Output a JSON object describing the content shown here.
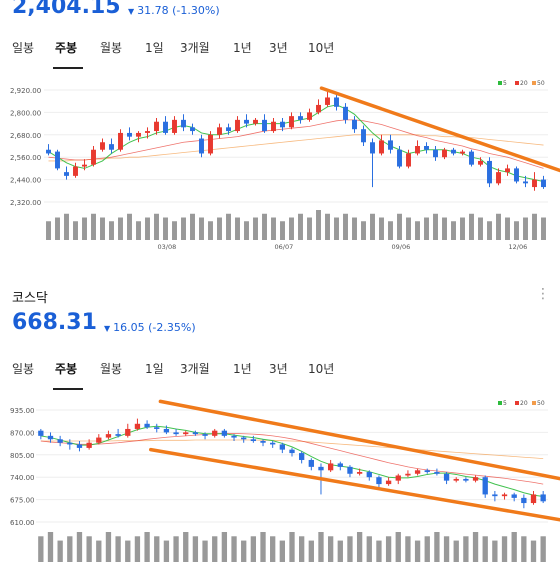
{
  "panel1": {
    "price": "2,404.15",
    "change": "31.78 (-1.30%)",
    "direction_icon": "triangle-down-icon",
    "tabs": [
      "일봉",
      "주봉",
      "월봉",
      "1일",
      "3개월",
      "1년",
      "3년",
      "10년"
    ],
    "active_tab": "주봉"
  },
  "panel2": {
    "name": "코스닥",
    "price": "668.31",
    "change": "16.05 (-2.35%)",
    "direction_icon": "triangle-down-icon",
    "tabs": [
      "일봉",
      "주봉",
      "월봉",
      "1일",
      "3개월",
      "1년",
      "3년",
      "10년"
    ],
    "active_tab": "주봉",
    "menu_icon": "more-vertical-icon"
  },
  "colors": {
    "up": "#e8392f",
    "down": "#2a6fe0",
    "ma5": "#2dbb3c",
    "ma20": "#e8392f",
    "ma50": "#f39c4a",
    "trendline": "#f07a1a",
    "volume": "#999999",
    "accent": "#1a5fd6"
  },
  "chart_data": [
    {
      "type": "candlestick",
      "legend": [
        "5",
        "20",
        "50"
      ],
      "legend_position": "top-right",
      "yticks": [
        "2,920.00",
        "2,800.00",
        "2,680.00",
        "2,560.00",
        "2,440.00",
        "2,320.00"
      ],
      "ylim": [
        2320,
        2920
      ],
      "xticks": [
        {
          "i": 13,
          "label": "03/08"
        },
        {
          "i": 26,
          "label": "06/07"
        },
        {
          "i": 39,
          "label": "09/06"
        },
        {
          "i": 52,
          "label": "12/06"
        }
      ],
      "candles": [
        [
          2600,
          2580,
          2630,
          2570
        ],
        [
          2590,
          2500,
          2600,
          2490
        ],
        [
          2480,
          2460,
          2510,
          2440
        ],
        [
          2460,
          2510,
          2530,
          2450
        ],
        [
          2510,
          2520,
          2550,
          2490
        ],
        [
          2520,
          2600,
          2620,
          2510
        ],
        [
          2600,
          2640,
          2660,
          2590
        ],
        [
          2630,
          2600,
          2660,
          2580
        ],
        [
          2600,
          2690,
          2710,
          2590
        ],
        [
          2690,
          2670,
          2720,
          2650
        ],
        [
          2670,
          2690,
          2700,
          2640
        ],
        [
          2690,
          2700,
          2720,
          2660
        ],
        [
          2700,
          2750,
          2770,
          2680
        ],
        [
          2750,
          2690,
          2780,
          2680
        ],
        [
          2690,
          2760,
          2780,
          2680
        ],
        [
          2760,
          2720,
          2790,
          2700
        ],
        [
          2720,
          2700,
          2740,
          2680
        ],
        [
          2660,
          2580,
          2680,
          2560
        ],
        [
          2580,
          2680,
          2700,
          2570
        ],
        [
          2680,
          2720,
          2740,
          2660
        ],
        [
          2720,
          2700,
          2740,
          2680
        ],
        [
          2700,
          2760,
          2780,
          2690
        ],
        [
          2760,
          2740,
          2790,
          2720
        ],
        [
          2740,
          2760,
          2770,
          2730
        ],
        [
          2760,
          2700,
          2790,
          2690
        ],
        [
          2700,
          2750,
          2770,
          2690
        ],
        [
          2750,
          2720,
          2770,
          2700
        ],
        [
          2720,
          2780,
          2800,
          2710
        ],
        [
          2780,
          2760,
          2800,
          2740
        ],
        [
          2760,
          2800,
          2820,
          2750
        ],
        [
          2800,
          2840,
          2870,
          2790
        ],
        [
          2840,
          2880,
          2910,
          2830
        ],
        [
          2880,
          2830,
          2900,
          2810
        ],
        [
          2830,
          2760,
          2850,
          2740
        ],
        [
          2760,
          2710,
          2780,
          2690
        ],
        [
          2710,
          2640,
          2730,
          2620
        ],
        [
          2640,
          2580,
          2660,
          2400
        ],
        [
          2580,
          2650,
          2680,
          2570
        ],
        [
          2650,
          2600,
          2680,
          2580
        ],
        [
          2600,
          2510,
          2620,
          2500
        ],
        [
          2510,
          2580,
          2600,
          2500
        ],
        [
          2580,
          2620,
          2650,
          2570
        ],
        [
          2620,
          2600,
          2640,
          2580
        ],
        [
          2600,
          2560,
          2620,
          2540
        ],
        [
          2560,
          2600,
          2610,
          2550
        ],
        [
          2600,
          2580,
          2610,
          2570
        ],
        [
          2580,
          2590,
          2600,
          2570
        ],
        [
          2590,
          2520,
          2600,
          2510
        ],
        [
          2520,
          2540,
          2560,
          2510
        ],
        [
          2540,
          2420,
          2560,
          2400
        ],
        [
          2420,
          2480,
          2500,
          2410
        ],
        [
          2480,
          2500,
          2520,
          2460
        ],
        [
          2500,
          2430,
          2510,
          2420
        ],
        [
          2430,
          2420,
          2460,
          2400
        ],
        [
          2400,
          2440,
          2480,
          2380
        ],
        [
          2440,
          2400,
          2460,
          2390
        ]
      ],
      "ma5": [
        2590,
        2560,
        2530,
        2510,
        2500,
        2520,
        2540,
        2580,
        2610,
        2640,
        2660,
        2670,
        2690,
        2700,
        2720,
        2730,
        2720,
        2690,
        2680,
        2680,
        2690,
        2710,
        2730,
        2740,
        2740,
        2740,
        2740,
        2750,
        2760,
        2770,
        2800,
        2830,
        2840,
        2820,
        2790,
        2740,
        2690,
        2650,
        2620,
        2600,
        2580,
        2590,
        2600,
        2600,
        2600,
        2590,
        2580,
        2560,
        2550,
        2510,
        2490,
        2480,
        2460,
        2450,
        2440,
        2430
      ],
      "ma20": [
        2560,
        2555,
        2550,
        2545,
        2545,
        2550,
        2555,
        2560,
        2570,
        2580,
        2590,
        2600,
        2610,
        2620,
        2630,
        2640,
        2645,
        2650,
        2655,
        2660,
        2665,
        2670,
        2680,
        2690,
        2700,
        2705,
        2710,
        2715,
        2720,
        2725,
        2735,
        2745,
        2755,
        2760,
        2760,
        2755,
        2745,
        2735,
        2720,
        2705,
        2690,
        2675,
        2665,
        2650,
        2640,
        2630,
        2620,
        2605,
        2595,
        2580,
        2570,
        2560,
        2545,
        2530,
        2515,
        2500
      ],
      "ma50": [
        2540,
        2540,
        2540,
        2545,
        2545,
        2550,
        2550,
        2555,
        2555,
        2560,
        2560,
        2565,
        2570,
        2575,
        2580,
        2585,
        2590,
        2595,
        2600,
        2605,
        2610,
        2615,
        2620,
        2625,
        2630,
        2635,
        2640,
        2645,
        2650,
        2655,
        2660,
        2665,
        2670,
        2675,
        2680,
        2680,
        2680,
        2680,
        2680,
        2680,
        2680,
        2680,
        2675,
        2675,
        2670,
        2670,
        2665,
        2665,
        2660,
        2655,
        2650,
        2645,
        2640,
        2635,
        2630,
        2625
      ],
      "volume": [
        5,
        6,
        7,
        5,
        6,
        7,
        6,
        5,
        6,
        7,
        5,
        6,
        7,
        6,
        5,
        6,
        7,
        6,
        5,
        6,
        7,
        6,
        5,
        6,
        7,
        6,
        5,
        6,
        7,
        6,
        8,
        7,
        6,
        7,
        6,
        5,
        7,
        6,
        5,
        7,
        6,
        5,
        6,
        7,
        6,
        5,
        6,
        7,
        6,
        5,
        7,
        6,
        5,
        6,
        7,
        6
      ],
      "trendline": [
        {
          "i": 31,
          "y": 2930
        },
        {
          "i": 55,
          "y": 2520
        }
      ]
    },
    {
      "type": "candlestick",
      "legend": [
        "5",
        "20",
        "50"
      ],
      "legend_position": "top-right",
      "yticks": [
        "935.00",
        "870.00",
        "805.00",
        "740.00",
        "675.00",
        "610.00"
      ],
      "ylim": [
        610,
        935
      ],
      "candles": [
        [
          875,
          860,
          880,
          850
        ],
        [
          860,
          850,
          870,
          840
        ],
        [
          850,
          840,
          860,
          830
        ],
        [
          840,
          835,
          850,
          820
        ],
        [
          835,
          825,
          845,
          815
        ],
        [
          825,
          840,
          850,
          820
        ],
        [
          840,
          855,
          865,
          835
        ],
        [
          855,
          865,
          875,
          850
        ],
        [
          865,
          860,
          880,
          855
        ],
        [
          860,
          880,
          895,
          855
        ],
        [
          880,
          895,
          910,
          875
        ],
        [
          895,
          885,
          905,
          880
        ],
        [
          885,
          880,
          895,
          870
        ],
        [
          880,
          870,
          890,
          865
        ],
        [
          870,
          865,
          880,
          860
        ],
        [
          865,
          870,
          875,
          860
        ],
        [
          870,
          865,
          875,
          860
        ],
        [
          865,
          860,
          870,
          850
        ],
        [
          860,
          875,
          880,
          855
        ],
        [
          875,
          860,
          880,
          855
        ],
        [
          860,
          855,
          865,
          845
        ],
        [
          855,
          850,
          860,
          840
        ],
        [
          850,
          845,
          860,
          840
        ],
        [
          845,
          840,
          850,
          830
        ],
        [
          840,
          835,
          845,
          825
        ],
        [
          835,
          820,
          840,
          810
        ],
        [
          820,
          810,
          825,
          800
        ],
        [
          810,
          790,
          815,
          780
        ],
        [
          790,
          770,
          795,
          760
        ],
        [
          770,
          760,
          780,
          690
        ],
        [
          760,
          780,
          790,
          755
        ],
        [
          780,
          770,
          785,
          760
        ],
        [
          770,
          750,
          775,
          740
        ],
        [
          750,
          755,
          765,
          745
        ],
        [
          755,
          740,
          760,
          730
        ],
        [
          740,
          720,
          745,
          710
        ],
        [
          720,
          730,
          740,
          715
        ],
        [
          730,
          745,
          750,
          720
        ],
        [
          745,
          750,
          760,
          740
        ],
        [
          750,
          760,
          765,
          745
        ],
        [
          760,
          755,
          765,
          750
        ],
        [
          755,
          750,
          765,
          745
        ],
        [
          750,
          730,
          755,
          720
        ],
        [
          730,
          735,
          740,
          725
        ],
        [
          735,
          730,
          740,
          725
        ],
        [
          730,
          740,
          745,
          725
        ],
        [
          740,
          690,
          745,
          680
        ],
        [
          690,
          685,
          700,
          670
        ],
        [
          685,
          690,
          695,
          675
        ],
        [
          690,
          680,
          695,
          670
        ],
        [
          680,
          665,
          690,
          650
        ],
        [
          665,
          690,
          700,
          660
        ],
        [
          690,
          670,
          700,
          665
        ]
      ],
      "ma5": [
        860,
        855,
        848,
        840,
        833,
        833,
        838,
        848,
        858,
        868,
        878,
        885,
        888,
        885,
        880,
        876,
        870,
        866,
        866,
        866,
        862,
        858,
        855,
        850,
        846,
        838,
        828,
        815,
        800,
        786,
        776,
        772,
        768,
        762,
        756,
        748,
        740,
        738,
        738,
        742,
        748,
        752,
        752,
        748,
        742,
        738,
        730,
        720,
        712,
        704,
        695,
        688,
        684
      ],
      "ma20": [
        845,
        842,
        840,
        838,
        836,
        835,
        836,
        838,
        840,
        843,
        846,
        850,
        853,
        856,
        858,
        860,
        862,
        864,
        866,
        867,
        867,
        866,
        865,
        863,
        860,
        856,
        851,
        845,
        838,
        831,
        824,
        817,
        810,
        803,
        796,
        789,
        782,
        776,
        770,
        765,
        761,
        758,
        755,
        752,
        749,
        746,
        743,
        740,
        737,
        733,
        729,
        725,
        720
      ],
      "ma50": [
        845,
        845,
        845,
        845,
        845,
        845,
        845,
        845,
        846,
        846,
        846,
        846,
        847,
        847,
        847,
        847,
        848,
        848,
        848,
        848,
        848,
        848,
        848,
        847,
        847,
        846,
        845,
        844,
        842,
        840,
        838,
        836,
        834,
        832,
        830,
        828,
        826,
        824,
        822,
        820,
        818,
        816,
        814,
        812,
        810,
        808,
        806,
        804,
        802,
        800,
        798,
        796,
        794
      ],
      "volume": [
        6,
        7,
        5,
        6,
        7,
        6,
        5,
        7,
        6,
        5,
        6,
        7,
        6,
        5,
        6,
        7,
        6,
        5,
        6,
        7,
        6,
        5,
        6,
        7,
        6,
        5,
        7,
        6,
        5,
        7,
        6,
        5,
        6,
        7,
        6,
        5,
        6,
        7,
        6,
        5,
        6,
        7,
        6,
        5,
        6,
        7,
        6,
        5,
        6,
        7,
        6,
        5,
        6
      ],
      "trendlines": [
        [
          {
            "i": 13,
            "y": 960
          },
          {
            "i": 53,
            "y": 740
          }
        ],
        [
          {
            "i": 12,
            "y": 820
          },
          {
            "i": 53,
            "y": 620
          }
        ]
      ]
    }
  ]
}
